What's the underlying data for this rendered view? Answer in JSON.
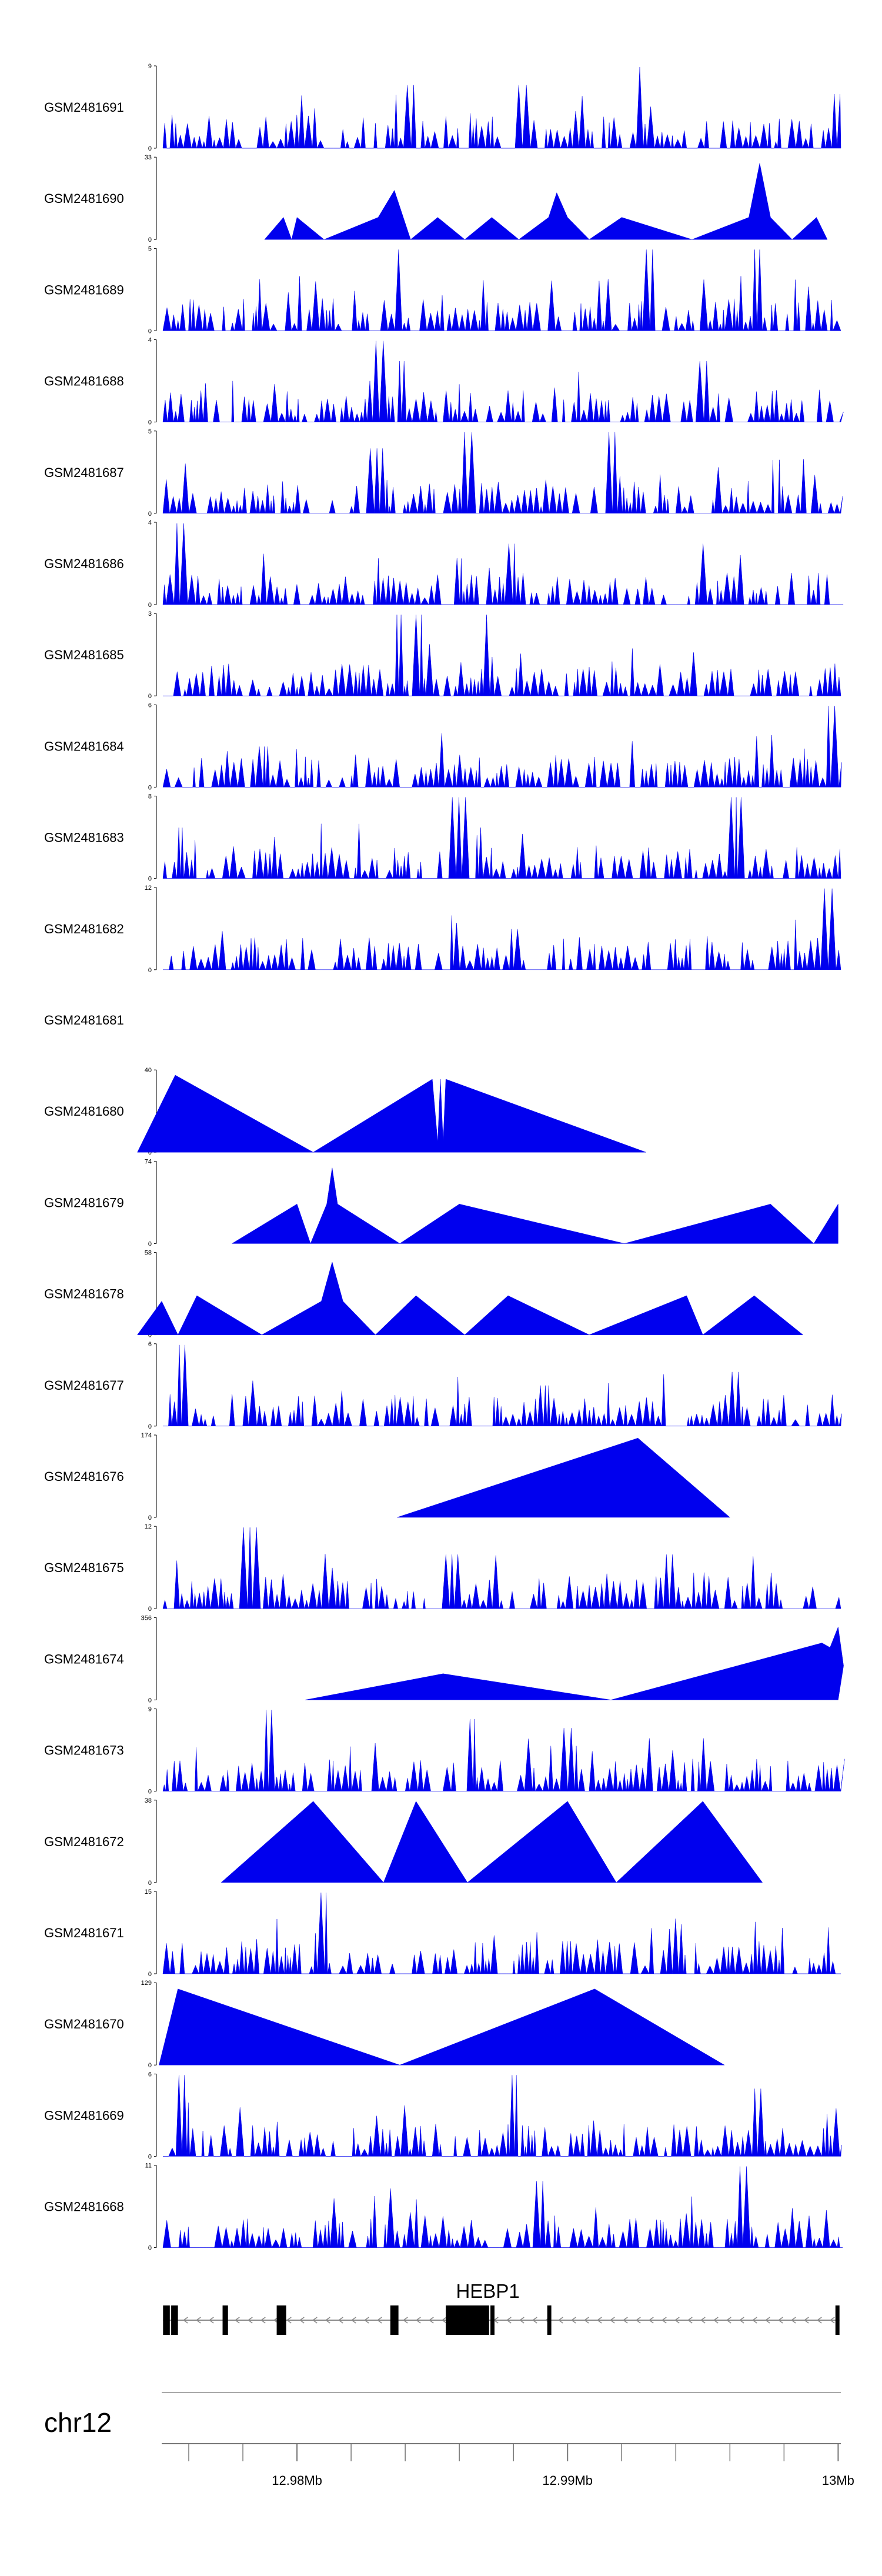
{
  "chart_data": {
    "type": "area",
    "title": "",
    "colors": {
      "fill": "#0000ee",
      "axis": "#000000",
      "gene": "#000000",
      "intron": "#888888"
    },
    "tracks": [
      {
        "name": "GSM2481691",
        "ymax": 9,
        "ymin": 0,
        "pattern": "dense",
        "peaks": [
          {
            "x": 12.9927,
            "y": 9
          },
          {
            "x": 12.9884,
            "y": 7
          },
          {
            "x": 12.9842,
            "y": 7
          },
          {
            "x": 13.0,
            "y": 6
          }
        ]
      },
      {
        "name": "GSM2481690",
        "ymax": 33,
        "ymin": 0,
        "pattern": "sparse",
        "points": [
          [
            12.9788,
            0
          ],
          [
            12.9795,
            9
          ],
          [
            12.9798,
            0
          ],
          [
            12.98,
            9
          ],
          [
            12.981,
            0
          ],
          [
            12.983,
            9
          ],
          [
            12.9836,
            20
          ],
          [
            12.9842,
            0
          ],
          [
            12.9852,
            9
          ],
          [
            12.9862,
            0
          ],
          [
            12.9872,
            9
          ],
          [
            12.9882,
            0
          ],
          [
            12.9893,
            9
          ],
          [
            12.9896,
            19
          ],
          [
            12.99,
            9
          ],
          [
            12.9908,
            0
          ],
          [
            12.992,
            9
          ],
          [
            12.9946,
            0
          ],
          [
            12.9967,
            9
          ],
          [
            12.9971,
            31
          ],
          [
            12.9975,
            9
          ],
          [
            12.9983,
            0
          ],
          [
            12.9992,
            9
          ],
          [
            12.9996,
            0
          ]
        ]
      },
      {
        "name": "GSM2481689",
        "ymax": 5,
        "ymin": 0,
        "pattern": "dense",
        "peaks": [
          {
            "x": 12.9838,
            "y": 5
          },
          {
            "x": 12.993,
            "y": 5
          },
          {
            "x": 12.997,
            "y": 5
          }
        ]
      },
      {
        "name": "GSM2481688",
        "ymax": 4,
        "ymin": 0,
        "pattern": "dense",
        "peaks": [
          {
            "x": 12.983,
            "y": 4
          },
          {
            "x": 12.9838,
            "y": 3
          },
          {
            "x": 12.995,
            "y": 3
          }
        ]
      },
      {
        "name": "GSM2481687",
        "ymax": 5,
        "ymin": 0,
        "pattern": "dense",
        "peaks": [
          {
            "x": 12.9863,
            "y": 5
          },
          {
            "x": 12.9916,
            "y": 5
          },
          {
            "x": 12.983,
            "y": 4
          }
        ]
      },
      {
        "name": "GSM2481686",
        "ymax": 4,
        "ymin": 0,
        "pattern": "dense",
        "peaks": [
          {
            "x": 12.9757,
            "y": 4
          },
          {
            "x": 12.988,
            "y": 3
          },
          {
            "x": 12.995,
            "y": 3
          }
        ]
      },
      {
        "name": "GSM2481685",
        "ymax": 3,
        "ymin": 0,
        "pattern": "dense",
        "peaks": [
          {
            "x": 12.9845,
            "y": 3
          },
          {
            "x": 12.9838,
            "y": 3
          },
          {
            "x": 12.987,
            "y": 3
          }
        ]
      },
      {
        "name": "GSM2481684",
        "ymax": 6,
        "ymin": 0,
        "pattern": "dense",
        "peaks": [
          {
            "x": 12.9997,
            "y": 6
          },
          {
            "x": 12.9999,
            "y": 6
          },
          {
            "x": 12.9788,
            "y": 3
          }
        ]
      },
      {
        "name": "GSM2481683",
        "ymax": 8,
        "ymin": 0,
        "pattern": "dense",
        "peaks": [
          {
            "x": 12.9757,
            "y": 5
          },
          {
            "x": 12.986,
            "y": 8
          },
          {
            "x": 12.9962,
            "y": 8
          }
        ]
      },
      {
        "name": "GSM2481682",
        "ymax": 12,
        "ymin": 0,
        "pattern": "dense",
        "peaks": [
          {
            "x": 12.9997,
            "y": 12
          },
          {
            "x": 12.988,
            "y": 6
          },
          {
            "x": 12.999,
            "y": 4
          }
        ]
      },
      {
        "name": "GSM2481681",
        "ymax": null,
        "ymin": null,
        "pattern": "empty"
      },
      {
        "name": "GSM2481680",
        "ymax": 40,
        "ymin": 0,
        "pattern": "sparse",
        "points": [
          [
            12.9741,
            0
          ],
          [
            12.9755,
            38
          ],
          [
            12.9806,
            0
          ],
          [
            12.985,
            36
          ],
          [
            12.9852,
            5
          ],
          [
            12.9853,
            36
          ],
          [
            12.9854,
            5
          ],
          [
            12.9855,
            36
          ],
          [
            12.9929,
            0
          ]
        ]
      },
      {
        "name": "GSM2481679",
        "ymax": 74,
        "ymin": 0,
        "pattern": "sparse",
        "points": [
          [
            12.9776,
            0
          ],
          [
            12.98,
            36
          ],
          [
            12.9805,
            0
          ],
          [
            12.9811,
            36
          ],
          [
            12.9813,
            69
          ],
          [
            12.9815,
            36
          ],
          [
            12.9838,
            0
          ],
          [
            12.986,
            36
          ],
          [
            12.9921,
            0
          ],
          [
            12.9975,
            36
          ],
          [
            12.9991,
            0
          ],
          [
            13.0,
            36
          ],
          [
            13.0,
            0
          ]
        ]
      },
      {
        "name": "GSM2481678",
        "ymax": 58,
        "ymin": 0,
        "pattern": "sparse",
        "points": [
          [
            12.9741,
            0
          ],
          [
            12.975,
            24
          ],
          [
            12.9756,
            0
          ],
          [
            12.9763,
            28
          ],
          [
            12.9787,
            0
          ],
          [
            12.9809,
            24
          ],
          [
            12.9813,
            52
          ],
          [
            12.9817,
            24
          ],
          [
            12.9829,
            0
          ],
          [
            12.9844,
            28
          ],
          [
            12.9862,
            0
          ],
          [
            12.9878,
            28
          ],
          [
            12.9908,
            0
          ],
          [
            12.9944,
            28
          ],
          [
            12.995,
            0
          ],
          [
            12.9969,
            28
          ],
          [
            12.9987,
            0
          ]
        ]
      },
      {
        "name": "GSM2481677",
        "ymax": 6,
        "ymin": 0,
        "pattern": "dense",
        "peaks": [
          {
            "x": 12.9757,
            "y": 6
          },
          {
            "x": 12.9892,
            "y": 3
          },
          {
            "x": 12.9963,
            "y": 4
          }
        ]
      },
      {
        "name": "GSM2481676",
        "ymax": 174,
        "ymin": 0,
        "pattern": "sparse",
        "points": [
          [
            12.9837,
            0
          ],
          [
            12.9926,
            170
          ],
          [
            12.996,
            0
          ]
        ]
      },
      {
        "name": "GSM2481675",
        "ymax": 12,
        "ymin": 0,
        "pattern": "dense",
        "peaks": [
          {
            "x": 12.9782,
            "y": 12
          },
          {
            "x": 12.9857,
            "y": 8
          },
          {
            "x": 12.9937,
            "y": 8
          }
        ]
      },
      {
        "name": "GSM2481674",
        "ymax": 356,
        "ymin": 0,
        "pattern": "sparse",
        "points": [
          [
            12.9803,
            0
          ],
          [
            12.9854,
            115
          ],
          [
            12.9916,
            0
          ],
          [
            12.9994,
            250
          ],
          [
            12.9997,
            230
          ],
          [
            13.0,
            320
          ],
          [
            13.0002,
            150
          ],
          [
            13.0,
            0
          ]
        ]
      },
      {
        "name": "GSM2481673",
        "ymax": 9,
        "ymin": 0,
        "pattern": "dense",
        "peaks": [
          {
            "x": 12.979,
            "y": 9
          },
          {
            "x": 12.9865,
            "y": 8
          },
          {
            "x": 12.99,
            "y": 7
          }
        ]
      },
      {
        "name": "GSM2481672",
        "ymax": 38,
        "ymin": 0,
        "pattern": "sparse",
        "points": [
          [
            12.9772,
            0
          ],
          [
            12.9806,
            38
          ],
          [
            12.9832,
            0
          ],
          [
            12.9844,
            38
          ],
          [
            12.9863,
            0
          ],
          [
            12.99,
            38
          ],
          [
            12.9918,
            0
          ],
          [
            12.995,
            38
          ],
          [
            12.9972,
            0
          ]
        ]
      },
      {
        "name": "GSM2481671",
        "ymax": 15,
        "ymin": 0,
        "pattern": "dense",
        "peaks": [
          {
            "x": 12.981,
            "y": 15
          },
          {
            "x": 12.99,
            "y": 6
          },
          {
            "x": 12.996,
            "y": 5
          }
        ]
      },
      {
        "name": "GSM2481670",
        "ymax": 129,
        "ymin": 0,
        "pattern": "sparse",
        "points": [
          [
            12.9749,
            0
          ],
          [
            12.9756,
            121
          ],
          [
            12.9838,
            0
          ],
          [
            12.991,
            121
          ],
          [
            12.9958,
            0
          ]
        ]
      },
      {
        "name": "GSM2481669",
        "ymax": 6,
        "ymin": 0,
        "pattern": "dense",
        "peaks": [
          {
            "x": 12.9757,
            "y": 6
          },
          {
            "x": 12.9881,
            "y": 6
          },
          {
            "x": 12.997,
            "y": 5
          }
        ]
      },
      {
        "name": "GSM2481668",
        "ymax": 11,
        "ymin": 0,
        "pattern": "dense",
        "peaks": [
          {
            "x": 12.9965,
            "y": 11
          },
          {
            "x": 12.989,
            "y": 9
          },
          {
            "x": 12.9835,
            "y": 8
          }
        ]
      }
    ],
    "gene": {
      "name": "HEBP1",
      "strand": "-",
      "start": 12.97505,
      "end": 13.00005,
      "exons": [
        [
          12.97505,
          12.9753
        ],
        [
          12.97535,
          12.9756
        ],
        [
          12.97725,
          12.97745
        ],
        [
          12.97925,
          12.9796
        ],
        [
          12.98345,
          12.98375
        ],
        [
          12.9855,
          12.9871
        ],
        [
          12.98715,
          12.9873
        ],
        [
          12.98925,
          12.9894
        ],
        [
          12.9999,
          13.00005
        ]
      ]
    },
    "chromosome": "chr12",
    "xaxis": {
      "range": [
        12.975,
        13.0001
      ],
      "major_ticks": [
        12.98,
        12.99,
        13.0
      ],
      "tick_labels": [
        "12.98Mb",
        "12.99Mb",
        "13Mb"
      ],
      "minor_step": 0.002
    }
  }
}
